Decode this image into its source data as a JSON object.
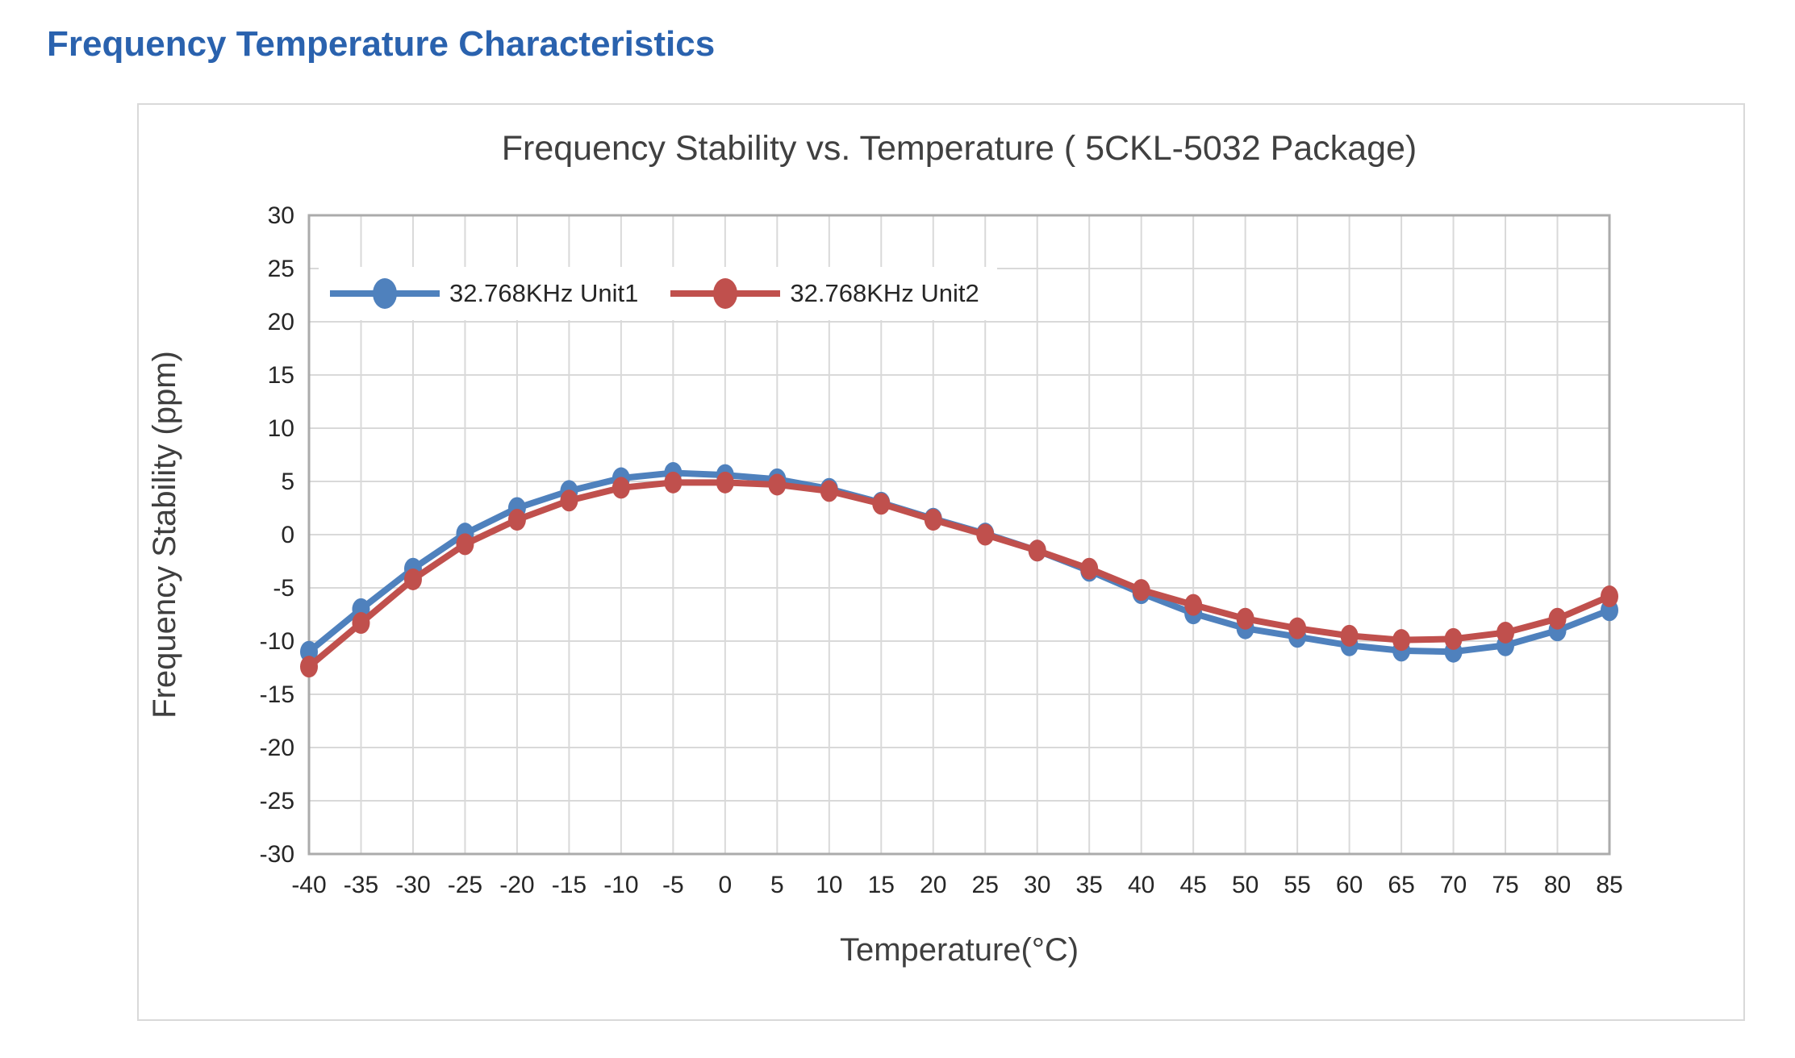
{
  "page": {
    "heading": "Frequency Temperature Characteristics"
  },
  "style": {
    "heading_color": "#2A62AE",
    "title_color": "#404040",
    "axis_title_color": "#3F3F3F",
    "tick_label_color": "#262626",
    "gridline_color": "#D9D9D9",
    "plot_border_color": "#ABABAB",
    "background": "#FFFFFF",
    "series1_color": "#4F81BD",
    "series2_color": "#C0504D"
  },
  "chart_data": {
    "type": "line",
    "title": "Frequency Stability vs. Temperature ( 5CKL-5032 Package)",
    "xlabel": "Temperature(°C)",
    "ylabel": "Frequency Stability (ppm)",
    "x": [
      -40,
      -35,
      -30,
      -25,
      -20,
      -15,
      -10,
      -5,
      0,
      5,
      10,
      15,
      20,
      25,
      30,
      35,
      40,
      45,
      50,
      55,
      60,
      65,
      70,
      75,
      80,
      85
    ],
    "xlim": [
      -40,
      85
    ],
    "ylim": [
      -30,
      30
    ],
    "x_tick_step": 5,
    "y_tick_step": 5,
    "grid": true,
    "legend_position": "top-left-inside",
    "series": [
      {
        "name": "32.768KHz Unit1",
        "color": "#4F81BD",
        "values": [
          -11.0,
          -7.0,
          -3.2,
          0.1,
          2.5,
          4.1,
          5.3,
          5.8,
          5.6,
          5.2,
          4.3,
          3.0,
          1.5,
          0.1,
          -1.5,
          -3.4,
          -5.5,
          -7.4,
          -8.8,
          -9.6,
          -10.4,
          -10.9,
          -11.0,
          -10.4,
          -9.0,
          -7.1
        ]
      },
      {
        "name": "32.768KHz Unit2",
        "color": "#C0504D",
        "values": [
          -12.4,
          -8.3,
          -4.2,
          -0.9,
          1.4,
          3.2,
          4.4,
          4.9,
          4.9,
          4.7,
          4.1,
          2.9,
          1.4,
          0.0,
          -1.5,
          -3.2,
          -5.2,
          -6.6,
          -7.9,
          -8.8,
          -9.5,
          -9.9,
          -9.8,
          -9.2,
          -7.9,
          -5.8
        ]
      }
    ]
  }
}
